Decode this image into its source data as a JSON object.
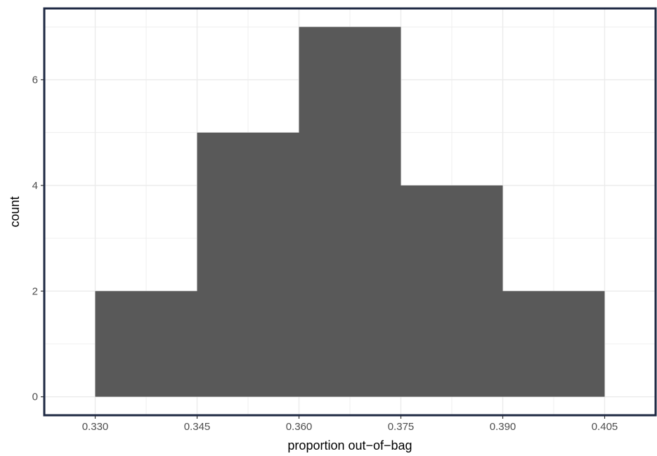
{
  "chart_data": {
    "type": "bar",
    "title": "",
    "xlabel": "proportion out−of−bag",
    "ylabel": "count",
    "bin_edges": [
      0.33,
      0.345,
      0.36,
      0.375,
      0.39,
      0.405
    ],
    "values": [
      2,
      5,
      7,
      4,
      2
    ],
    "xlim": [
      0.3225,
      0.4125
    ],
    "ylim": [
      -0.35,
      7.35
    ],
    "x_ticks": [
      0.33,
      0.345,
      0.36,
      0.375,
      0.39,
      0.405
    ],
    "x_tick_labels": [
      "0.330",
      "0.345",
      "0.360",
      "0.375",
      "0.390",
      "0.405"
    ],
    "y_ticks": [
      0,
      2,
      4,
      6
    ],
    "y_tick_labels": [
      "0",
      "2",
      "4",
      "6"
    ],
    "grid": true,
    "bar_color": "#595959",
    "panel_border_color": "#1f2a44",
    "grid_color": "#ebebeb"
  }
}
